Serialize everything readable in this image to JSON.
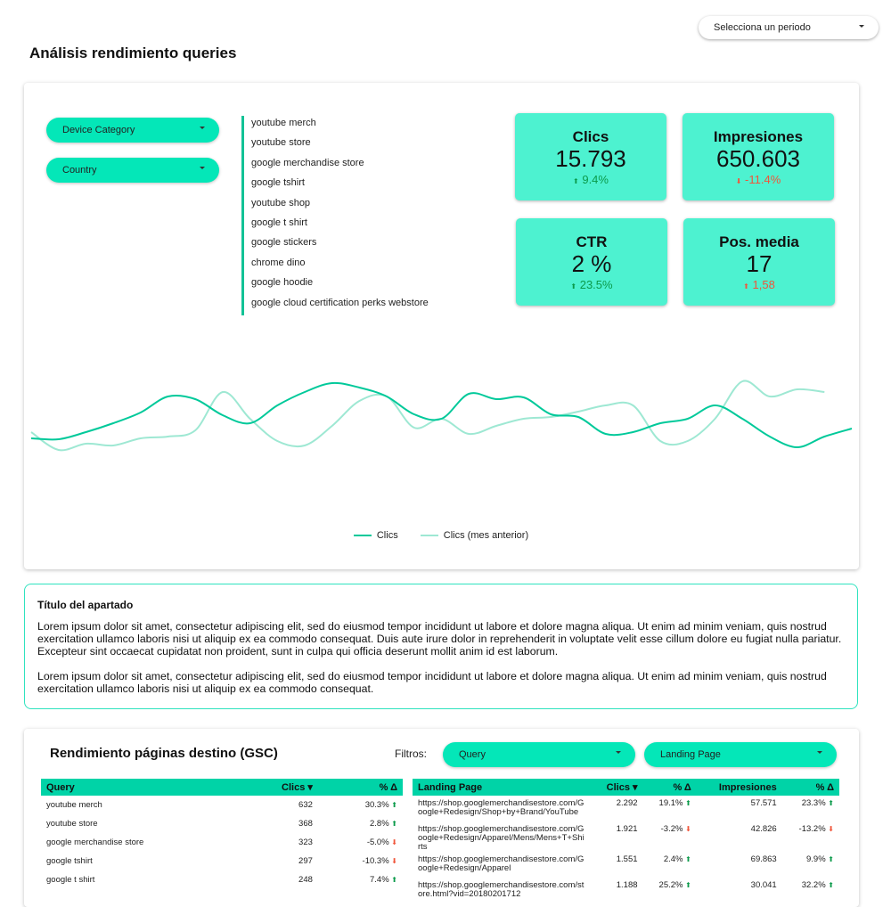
{
  "period_selector": {
    "label": "Selecciona un periodo"
  },
  "title": "Análisis rendimiento queries",
  "filters": {
    "device": "Device Category",
    "country": "Country"
  },
  "top_queries": [
    "youtube merch",
    "youtube store",
    "google merchandise store",
    "google tshirt",
    "youtube shop",
    "google t shirt",
    "google stickers",
    "chrome dino",
    "google hoodie",
    "google cloud certification perks webstore"
  ],
  "kpis": [
    {
      "title": "Clics",
      "value": "15.793",
      "delta": "9.4%",
      "direction": "up",
      "tone": "up"
    },
    {
      "title": "Impresiones",
      "value": "650.603",
      "delta": "-11.4%",
      "direction": "down",
      "tone": "down"
    },
    {
      "title": "CTR",
      "value": "2 %",
      "delta": "23.5%",
      "direction": "up",
      "tone": "up"
    },
    {
      "title": "Pos. media",
      "value": "17",
      "delta": "1,58",
      "direction": "up",
      "tone": "down"
    }
  ],
  "colors": {
    "accent": "#04e7b8",
    "kpi_bg": "#4df2d0",
    "header": "#00d3a7",
    "line_current": "#00c99a",
    "line_previous": "#9ee8d3",
    "up": "#0b9a4a",
    "down": "#f0553a"
  },
  "chart_data": {
    "type": "line",
    "grid": false,
    "legend": "bottom",
    "ylim": [
      0,
      180
    ],
    "series": [
      {
        "name": "Clics",
        "values": [
          68,
          67,
          75,
          85,
          97,
          115,
          112,
          94,
          85,
          105,
          120,
          130,
          125,
          115,
          95,
          90,
          118,
          112,
          114,
          95,
          92,
          73,
          75,
          85,
          90,
          105,
          90,
          70,
          58,
          70,
          79
        ]
      },
      {
        "name": "Clics (mes anterior)",
        "values": [
          75,
          55,
          62,
          60,
          68,
          70,
          77,
          120,
          90,
          65,
          60,
          82,
          110,
          115,
          80,
          90,
          73,
          82,
          90,
          92,
          98,
          105,
          105,
          65,
          65,
          90,
          132,
          115,
          123,
          120
        ]
      }
    ]
  },
  "section": {
    "title": "Título del apartado",
    "p1": "Lorem ipsum dolor sit amet, consectetur adipiscing elit, sed do eiusmod tempor incididunt ut labore et dolore magna aliqua. Ut enim ad minim veniam, quis nostrud exercitation ullamco laboris nisi ut aliquip ex ea commodo consequat. Duis aute irure dolor in reprehenderit in voluptate velit esse cillum dolore eu fugiat nulla pariatur. Excepteur sint occaecat cupidatat non proident, sunt in culpa qui officia deserunt mollit anim id est laborum.",
    "p2": "Lorem ipsum dolor sit amet, consectetur adipiscing elit, sed do eiusmod tempor incididunt ut labore et dolore magna aliqua. Ut enim ad minim veniam, quis nostrud exercitation ullamco laboris nisi ut aliquip ex ea commodo consequat."
  },
  "gsc": {
    "title": "Rendimiento páginas destino (GSC)",
    "filters_label": "Filtros:",
    "filter_query": "Query",
    "filter_landing": "Landing Page",
    "query_table": {
      "headers": [
        "Query",
        "Clics ▾",
        "% Δ"
      ],
      "rows": [
        [
          "youtube merch",
          "632",
          "30.3%",
          "up"
        ],
        [
          "youtube store",
          "368",
          "2.8%",
          "up"
        ],
        [
          "google merchandise store",
          "323",
          "-5.0%",
          "down"
        ],
        [
          "google tshirt",
          "297",
          "-10.3%",
          "down"
        ],
        [
          "google t shirt",
          "248",
          "7.4%",
          "up"
        ]
      ]
    },
    "landing_table": {
      "headers": [
        "Landing Page",
        "Clics ▾",
        "% Δ",
        "Impresiones",
        "% Δ"
      ],
      "rows": [
        [
          "https://shop.googlemerchandisestore.com/Google+Redesign/Shop+by+Brand/YouTube",
          "2.292",
          "19.1%",
          "up",
          "57.571",
          "23.3%",
          "up"
        ],
        [
          "https://shop.googlemerchandisestore.com/Google+Redesign/Apparel/Mens/Mens+T+Shirts",
          "1.921",
          "-3.2%",
          "down",
          "42.826",
          "-13.2%",
          "down"
        ],
        [
          "https://shop.googlemerchandisestore.com/Google+Redesign/Apparel",
          "1.551",
          "2.4%",
          "up",
          "69.863",
          "9.9%",
          "up"
        ],
        [
          "https://shop.googlemerchandisestore.com/store.html?vid=20180201712",
          "1.188",
          "25.2%",
          "up",
          "30.041",
          "32.2%",
          "up"
        ]
      ]
    }
  }
}
